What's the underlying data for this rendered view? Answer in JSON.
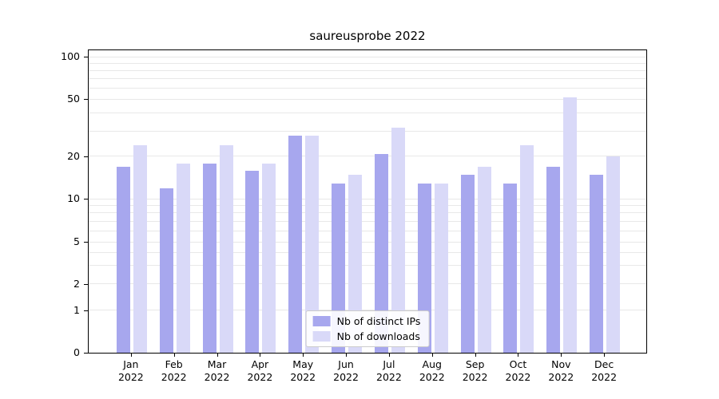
{
  "chart_data": {
    "type": "bar",
    "title": "saureusprobe 2022",
    "categories": [
      "Jan 2022",
      "Feb 2022",
      "Mar 2022",
      "Apr 2022",
      "May 2022",
      "Jun 2022",
      "Jul 2022",
      "Aug 2022",
      "Sep 2022",
      "Oct 2022",
      "Nov 2022",
      "Dec 2022"
    ],
    "series": [
      {
        "name": "Nb of distinct IPs",
        "color": "#a7a7ee",
        "values": [
          17,
          12,
          18,
          16,
          28,
          13,
          21,
          13,
          15,
          13,
          17,
          15
        ]
      },
      {
        "name": "Nb of downloads",
        "color": "#d9d9f8",
        "values": [
          24,
          18,
          24,
          18,
          28,
          15,
          32,
          13,
          17,
          24,
          52,
          20
        ]
      }
    ],
    "ylabel": "",
    "xlabel": "",
    "yticks": [
      0,
      1,
      2,
      5,
      10,
      20,
      50,
      100
    ],
    "y_axis_scale": "symlog",
    "ylim": [
      0,
      110
    ],
    "y_anchors": [
      [
        0,
        0.0
      ],
      [
        1,
        0.139
      ],
      [
        2,
        0.226
      ],
      [
        5,
        0.365
      ],
      [
        10,
        0.507
      ],
      [
        20,
        0.648
      ],
      [
        50,
        0.837
      ],
      [
        100,
        0.976
      ]
    ],
    "gridline_values": [
      1,
      2,
      3,
      4,
      5,
      6,
      7,
      8,
      9,
      10,
      20,
      30,
      40,
      50,
      60,
      70,
      80,
      90,
      100
    ],
    "grid": "on",
    "legend_position": "lower center",
    "gridline_color": "#e8e8e8"
  }
}
